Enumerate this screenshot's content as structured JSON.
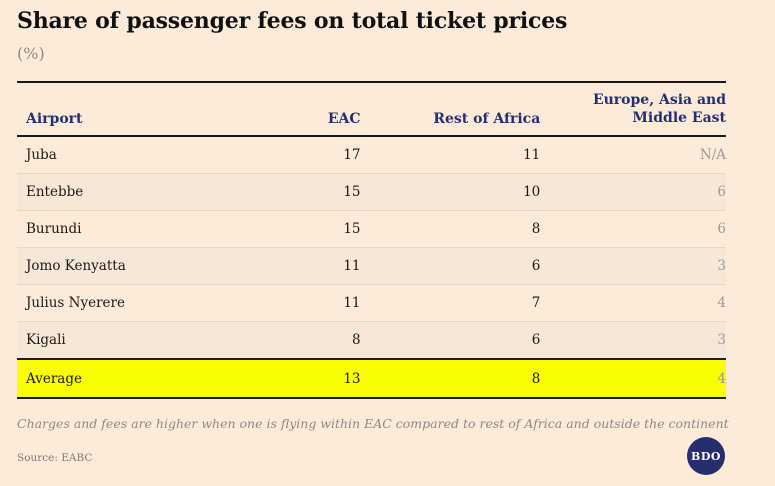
{
  "title": "Share of passenger fees on total ticket prices",
  "subtitle": "(%)",
  "headers": {
    "airport": "Airport",
    "eac": "EAC",
    "rest_of_africa": "Rest of Africa",
    "europe": "Europe, Asia and Middle East"
  },
  "rows": [
    {
      "airport": "Juba",
      "eac": "17",
      "rest_of_africa": "11",
      "europe": "N/A"
    },
    {
      "airport": "Entebbe",
      "eac": "15",
      "rest_of_africa": "10",
      "europe": "6"
    },
    {
      "airport": "Burundi",
      "eac": "15",
      "rest_of_africa": "8",
      "europe": "6"
    },
    {
      "airport": "Jomo Kenyatta",
      "eac": "11",
      "rest_of_africa": "6",
      "europe": "3"
    },
    {
      "airport": "Julius Nyerere",
      "eac": "11",
      "rest_of_africa": "7",
      "europe": "4"
    },
    {
      "airport": "Kigali",
      "eac": "8",
      "rest_of_africa": "6",
      "europe": "3"
    },
    {
      "airport": "Average",
      "eac": "13",
      "rest_of_africa": "8",
      "europe": "4"
    }
  ],
  "note": "Charges and fees are higher when one is flying within EAC compared to rest of Africa and outside the continent",
  "source": "Source: EABC",
  "logo_text": "BDO",
  "colors": {
    "background": "#fdebd9",
    "header_text": "#232f72",
    "highlight": "#f9ff00",
    "logo": "#262e6e"
  },
  "chart_data": {
    "type": "table",
    "title": "Share of passenger fees on total ticket prices",
    "subtitle": "(%)",
    "columns": [
      "Airport",
      "EAC",
      "Rest of Africa",
      "Europe, Asia and Middle East"
    ],
    "rows": [
      [
        "Juba",
        17,
        11,
        "N/A"
      ],
      [
        "Entebbe",
        15,
        10,
        6
      ],
      [
        "Burundi",
        15,
        8,
        6
      ],
      [
        "Jomo Kenyatta",
        11,
        6,
        3
      ],
      [
        "Julius Nyerere",
        11,
        7,
        4
      ],
      [
        "Kigali",
        8,
        6,
        3
      ],
      [
        "Average",
        13,
        8,
        4
      ]
    ],
    "highlighted_row": "Average"
  }
}
